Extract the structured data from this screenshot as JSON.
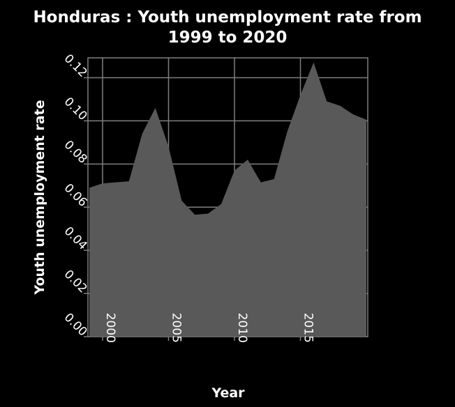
{
  "chart_data": {
    "type": "area",
    "title_lines": [
      "Honduras : Youth unemployment rate from",
      "1999 to 2020"
    ],
    "xlabel": "Year",
    "ylabel": "Youth unemployment rate",
    "x": [
      1999,
      2000,
      2001,
      2002,
      2003,
      2004,
      2005,
      2006,
      2007,
      2008,
      2009,
      2010,
      2011,
      2012,
      2013,
      2014,
      2015,
      2016,
      2017,
      2018,
      2019,
      2020
    ],
    "values": [
      0.069,
      0.071,
      0.0715,
      0.072,
      0.094,
      0.106,
      0.088,
      0.063,
      0.0565,
      0.057,
      0.0615,
      0.077,
      0.082,
      0.0715,
      0.073,
      0.095,
      0.112,
      0.127,
      0.109,
      0.107,
      0.103,
      0.1005
    ],
    "xlim": [
      1999,
      2020
    ],
    "ylim": [
      0,
      0.12
    ],
    "xticks": [
      2000,
      2005,
      2010,
      2015
    ],
    "xtick_labels": [
      "2000",
      "2005",
      "2010",
      "2015"
    ],
    "yticks": [
      0,
      0.02,
      0.04,
      0.06,
      0.08,
      0.1,
      0.12
    ],
    "ytick_labels": [
      "0.00",
      "0.02",
      "0.04",
      "0.06",
      "0.08",
      "0.10",
      "0.12"
    ],
    "grid": true,
    "legend": "none",
    "colors": {
      "background": "#000000",
      "plot_background": "#000000",
      "area_fill": "#595959",
      "grid": "#7f7f7f",
      "text": "#ffffff"
    }
  }
}
